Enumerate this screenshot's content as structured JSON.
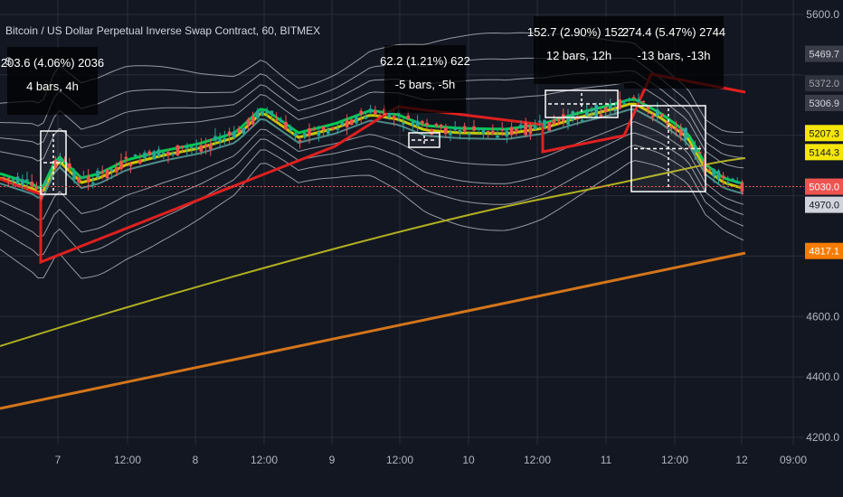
{
  "chart_data": {
    "type": "candlestick",
    "title": "Bitcoin / US Dollar Perpetual Inverse Swap Contract, 60, BITMEX",
    "symbol_prefix": "$",
    "ylim": [
      4200,
      5650
    ],
    "x_ticks": [
      "7",
      "12:00",
      "8",
      "12:00",
      "9",
      "12:00",
      "10",
      "12:00",
      "11",
      "12:00",
      "12",
      "09:00"
    ],
    "y_ticks": [
      {
        "value": 5600,
        "label": "5600.0"
      },
      {
        "value": 4600,
        "label": "4600.0"
      },
      {
        "value": 4400,
        "label": "4400.0"
      },
      {
        "value": 4200,
        "label": "4200.0"
      }
    ],
    "price_tags": [
      {
        "value": 5469.7,
        "label": "5469.7",
        "bg": "#3a3d47",
        "fg": "#d1d4dc"
      },
      {
        "value": 5372.0,
        "label": "5372.0",
        "bg": "#2f323c",
        "fg": "#a0a3ab"
      },
      {
        "value": 5306.9,
        "label": "5306.9",
        "bg": "#3a3d47",
        "fg": "#d1d4dc"
      },
      {
        "value": 5207.3,
        "label": "5207.3",
        "bg": "#f5e60a",
        "fg": "#131722"
      },
      {
        "value": 5144.3,
        "label": "5144.3",
        "bg": "#f5e60a",
        "fg": "#131722"
      },
      {
        "value": 5030.0,
        "label": "5030.0",
        "bg": "#ef5350",
        "fg": "#ffffff"
      },
      {
        "value": 4970.0,
        "label": "4970.0",
        "bg": "#d1d4dc",
        "fg": "#131722"
      },
      {
        "value": 4817.1,
        "label": "4817.1",
        "bg": "#f57c00",
        "fg": "#ffffff"
      }
    ],
    "current_price": 5030.0,
    "measurements": [
      {
        "line1": "203.6 (4.06%) 2036",
        "line2": "4 bars, 4h"
      },
      {
        "line1": "62.2 (1.21%) 622",
        "line2": "-5 bars, -5h"
      },
      {
        "line1": "152.7 (2.90%) 1527",
        "line2": "12 bars, 12h"
      },
      {
        "line1": "274.4 (5.47%) 2744",
        "line2": "-13 bars, -13h"
      }
    ],
    "colors": {
      "background": "#131722",
      "grid": "#2a2e39",
      "bull": "#26a69a",
      "bear": "#ef5350",
      "band": "#9598a1",
      "ema_green": "#00c853",
      "ema_yellow": "#c8c800",
      "trend_red": "#e0201f",
      "sma_orange": "#d4751a",
      "sma_olive": "#b0b020"
    }
  }
}
